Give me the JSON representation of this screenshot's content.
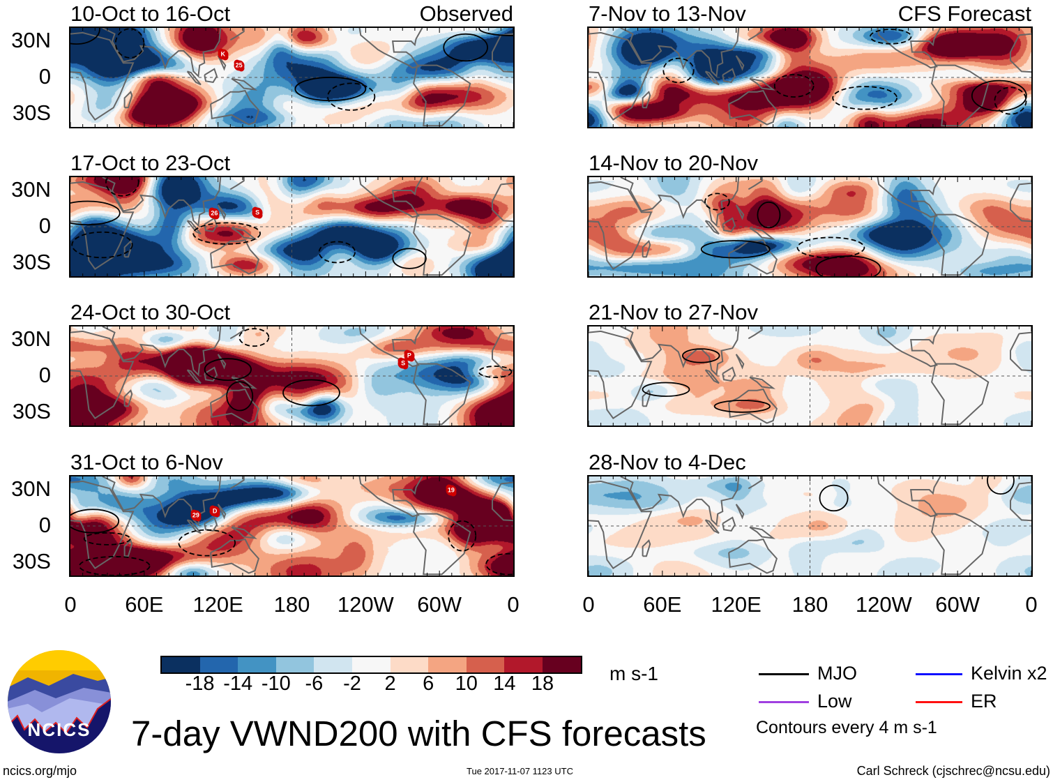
{
  "title": "7-day VWND200 with CFS forecasts",
  "observed_label": "Observed",
  "forecast_label": "CFS Forecast",
  "panels": {
    "observed": [
      {
        "label": "10-Oct to 16-Oct",
        "storms": [
          {
            "name": "K",
            "lon": 124,
            "lat": 19
          },
          {
            "name": "25",
            "lon": 137,
            "lat": 10
          }
        ]
      },
      {
        "label": "17-Oct to 23-Oct",
        "storms": [
          {
            "name": "26",
            "lon": 117,
            "lat": 11
          },
          {
            "name": "S",
            "lon": 152,
            "lat": 11.5
          }
        ]
      },
      {
        "label": "24-Oct to 30-Oct",
        "storms": [
          {
            "name": "P",
            "lon": 275.5,
            "lat": 17
          },
          {
            "name": "S",
            "lon": 270.5,
            "lat": 10.5
          }
        ]
      },
      {
        "label": "31-Oct to 6-Nov",
        "storms": [
          {
            "name": "29",
            "lon": 102,
            "lat": 8.7
          },
          {
            "name": "D",
            "lon": 117.4,
            "lat": 12
          },
          {
            "name": "19",
            "lon": 309.5,
            "lat": 29.5
          }
        ]
      }
    ],
    "forecast": [
      {
        "label": "7-Nov to 13-Nov",
        "storms": []
      },
      {
        "label": "14-Nov to 20-Nov",
        "storms": []
      },
      {
        "label": "21-Nov to 27-Nov",
        "storms": []
      },
      {
        "label": "28-Nov to 4-Dec",
        "storms": []
      }
    ]
  },
  "y_ticks": [
    "30N",
    "0",
    "30S"
  ],
  "x_ticks": [
    "0",
    "60E",
    "120E",
    "180",
    "120W",
    "60W",
    "0"
  ],
  "colorbar": {
    "units": "m s-1",
    "labels": [
      "-18",
      "-14",
      "-10",
      "-6",
      "-2",
      "2",
      "6",
      "10",
      "14",
      "18"
    ],
    "colors": [
      "#0b3060",
      "#2366ad",
      "#4393c3",
      "#92c5de",
      "#d1e5f0",
      "#f7f7f7",
      "#fddbc7",
      "#f4a582",
      "#d6604d",
      "#b2182b",
      "#67001f"
    ]
  },
  "legend": {
    "items": [
      {
        "label": "MJO",
        "color": "#000000"
      },
      {
        "label": "Kelvin x2",
        "color": "#1010ff"
      },
      {
        "label": "Low",
        "color": "#a040e0"
      },
      {
        "label": "ER",
        "color": "#ff1010"
      }
    ],
    "note": "Contours every 4 m s-1"
  },
  "logo": {
    "text": "NCICS"
  },
  "footer": {
    "url": "ncics.org/mjo",
    "timestamp": "Tue 2017-11-07 1123 UTC",
    "author": "Carl Schreck (cjschrec@ncsu.edu)"
  }
}
